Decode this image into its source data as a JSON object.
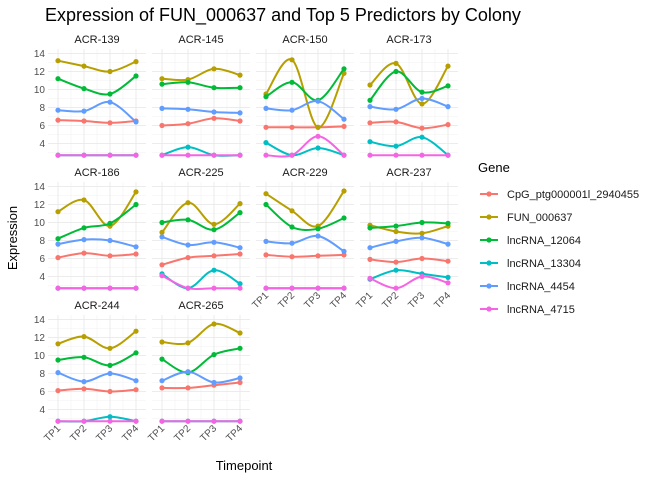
{
  "chart_data": {
    "type": "line",
    "title": "Expression of FUN_000637 and Top 5 Predictors by Colony",
    "xlabel": "Timepoint",
    "ylabel": "Expression",
    "legend_title": "Gene",
    "legend_position": "right",
    "grid": true,
    "ylim": [
      2.5,
      14.5
    ],
    "yticks": [
      4,
      6,
      8,
      10,
      12,
      14
    ],
    "categories": [
      "TP1",
      "TP2",
      "TP3",
      "TP4"
    ],
    "genes": [
      {
        "name": "CpG_ptg000001l_2940455",
        "color": "#F8766D"
      },
      {
        "name": "FUN_000637",
        "color": "#B79F00"
      },
      {
        "name": "lncRNA_12064",
        "color": "#00BA38"
      },
      {
        "name": "lncRNA_13304",
        "color": "#00BFC4"
      },
      {
        "name": "lncRNA_4454",
        "color": "#619CFF"
      },
      {
        "name": "lncRNA_4715",
        "color": "#F564E3"
      }
    ],
    "panels": [
      {
        "colony": "ACR-139",
        "values": [
          [
            6.6,
            6.5,
            6.3,
            6.5
          ],
          [
            13.2,
            12.6,
            12.0,
            13.1
          ],
          [
            11.2,
            10.1,
            9.5,
            11.5
          ],
          [
            2.7,
            2.7,
            2.7,
            2.7
          ],
          [
            7.7,
            7.6,
            8.6,
            6.4
          ],
          [
            2.7,
            2.7,
            2.7,
            2.7
          ]
        ]
      },
      {
        "colony": "ACR-145",
        "values": [
          [
            6.0,
            6.2,
            6.8,
            6.5
          ],
          [
            11.2,
            11.1,
            12.3,
            11.6
          ],
          [
            10.6,
            10.8,
            10.2,
            10.2
          ],
          [
            2.7,
            3.6,
            2.7,
            2.7
          ],
          [
            7.9,
            7.8,
            7.5,
            7.4
          ],
          [
            2.7,
            2.7,
            2.7,
            2.7
          ]
        ]
      },
      {
        "colony": "ACR-150",
        "values": [
          [
            5.8,
            5.8,
            5.8,
            5.9
          ],
          [
            9.5,
            13.3,
            5.8,
            11.8
          ],
          [
            9.2,
            10.8,
            8.8,
            12.3
          ],
          [
            4.1,
            2.7,
            3.5,
            2.7
          ],
          [
            7.9,
            7.7,
            8.7,
            6.7
          ],
          [
            2.7,
            2.7,
            4.8,
            2.7
          ]
        ]
      },
      {
        "colony": "ACR-173",
        "values": [
          [
            6.3,
            6.4,
            5.7,
            6.1
          ],
          [
            10.5,
            12.9,
            8.4,
            12.6
          ],
          [
            8.8,
            12.0,
            9.7,
            10.4
          ],
          [
            4.2,
            3.7,
            4.7,
            2.7
          ],
          [
            8.1,
            7.8,
            9.0,
            8.1
          ],
          [
            2.7,
            2.7,
            2.7,
            2.7
          ]
        ]
      },
      {
        "colony": "ACR-186",
        "values": [
          [
            6.1,
            6.6,
            6.3,
            6.5
          ],
          [
            11.2,
            12.5,
            9.6,
            13.4
          ],
          [
            8.2,
            9.4,
            9.9,
            12.0
          ],
          [
            2.7,
            2.7,
            2.7,
            2.7
          ],
          [
            7.6,
            8.1,
            8.0,
            7.3
          ],
          [
            2.7,
            2.7,
            2.7,
            2.7
          ]
        ]
      },
      {
        "colony": "ACR-225",
        "values": [
          [
            5.3,
            6.1,
            6.3,
            6.5
          ],
          [
            8.9,
            12.2,
            9.8,
            12.1
          ],
          [
            10.0,
            10.3,
            9.2,
            11.1
          ],
          [
            4.3,
            2.7,
            4.7,
            3.2
          ],
          [
            8.4,
            7.5,
            7.8,
            7.2
          ],
          [
            4.1,
            2.7,
            2.7,
            2.7
          ]
        ]
      },
      {
        "colony": "ACR-229",
        "values": [
          [
            6.4,
            6.2,
            6.3,
            6.4
          ],
          [
            13.2,
            11.3,
            9.6,
            13.5
          ],
          [
            12.0,
            9.5,
            9.3,
            10.5
          ],
          [
            2.7,
            2.7,
            2.7,
            2.7
          ],
          [
            7.9,
            7.7,
            8.5,
            6.8
          ],
          [
            2.7,
            2.7,
            2.7,
            2.7
          ]
        ]
      },
      {
        "colony": "ACR-237",
        "values": [
          [
            5.9,
            5.6,
            6.0,
            5.7
          ],
          [
            9.7,
            9.0,
            8.8,
            9.6
          ],
          [
            9.4,
            9.6,
            10.0,
            9.9
          ],
          [
            3.7,
            4.7,
            4.3,
            3.9
          ],
          [
            7.2,
            7.9,
            8.3,
            7.6
          ],
          [
            3.8,
            2.7,
            4.0,
            3.3
          ]
        ]
      },
      {
        "colony": "ACR-244",
        "values": [
          [
            6.1,
            6.3,
            6.0,
            6.2
          ],
          [
            11.3,
            12.1,
            10.8,
            12.7
          ],
          [
            9.5,
            9.8,
            8.9,
            10.3
          ],
          [
            2.7,
            2.7,
            3.2,
            2.7
          ],
          [
            8.1,
            7.1,
            8.0,
            7.2
          ],
          [
            2.7,
            2.7,
            2.7,
            2.7
          ]
        ]
      },
      {
        "colony": "ACR-265",
        "values": [
          [
            6.4,
            6.4,
            6.7,
            7.0
          ],
          [
            11.5,
            11.4,
            13.5,
            12.5
          ],
          [
            9.6,
            8.1,
            10.1,
            10.8
          ],
          [
            2.7,
            2.7,
            2.7,
            2.7
          ],
          [
            7.2,
            8.2,
            7.0,
            7.5
          ],
          [
            2.7,
            2.7,
            2.7,
            2.7
          ]
        ]
      }
    ]
  }
}
